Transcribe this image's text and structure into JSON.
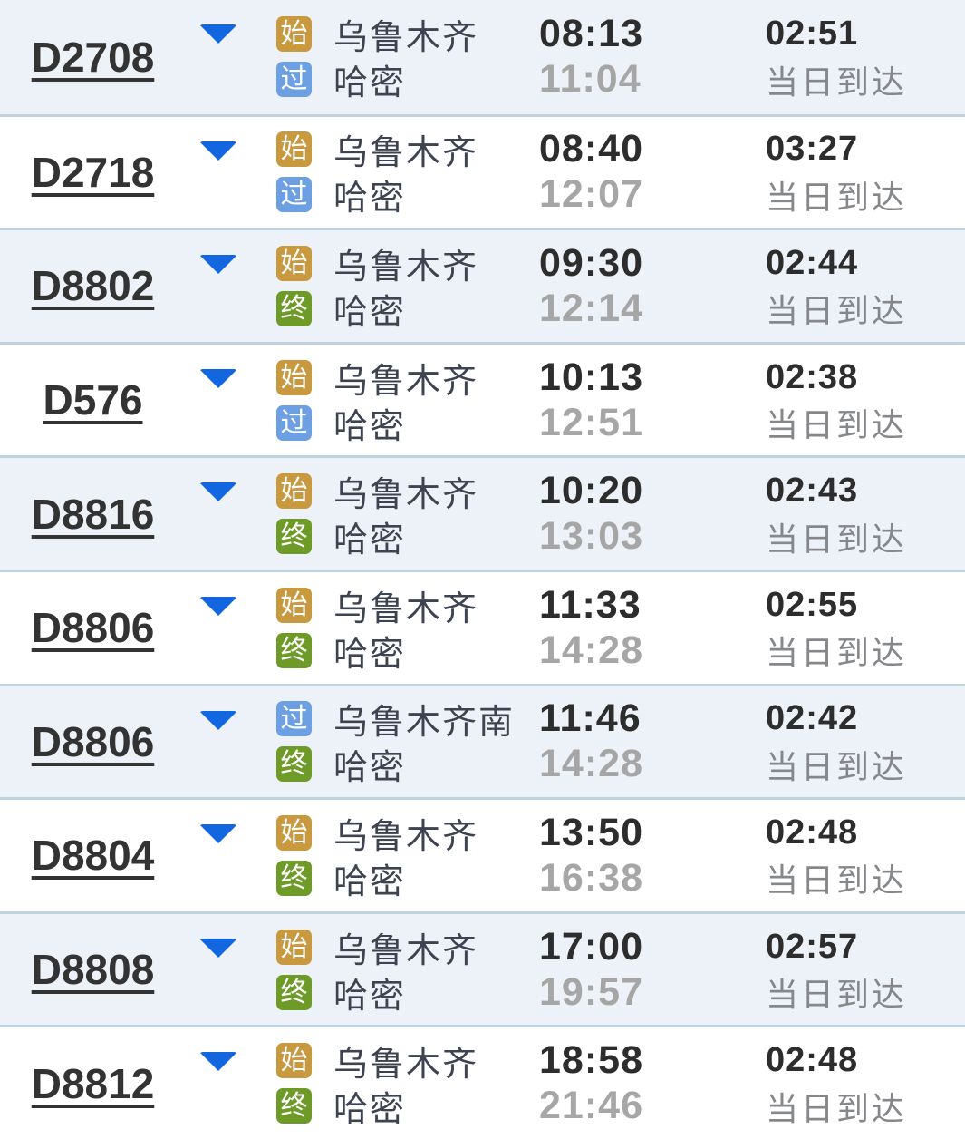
{
  "badge_types": {
    "start": {
      "label": "始",
      "color": "#c8993e"
    },
    "pass": {
      "label": "过",
      "color": "#6ca0e2"
    },
    "end": {
      "label": "终",
      "color": "#6e9a28"
    }
  },
  "colors": {
    "row_alt_bg": "#edf1f8",
    "row_bg": "#ffffff",
    "separator": "#bfd2dd",
    "arrow": "#1267e0",
    "train_number": "#333333",
    "station_name": "#3d4350",
    "time_primary": "#2d2d2d",
    "time_secondary": "#a6a6a6",
    "note": "#85878a"
  },
  "rows": [
    {
      "train": "D2708",
      "origin_type": "start",
      "origin": "乌鲁木齐",
      "depart": "08:13",
      "dest_type": "pass",
      "dest": "哈密",
      "arrive": "11:04",
      "duration": "02:51",
      "arrival_note": "当日到达"
    },
    {
      "train": "D2718",
      "origin_type": "start",
      "origin": "乌鲁木齐",
      "depart": "08:40",
      "dest_type": "pass",
      "dest": "哈密",
      "arrive": "12:07",
      "duration": "03:27",
      "arrival_note": "当日到达"
    },
    {
      "train": "D8802",
      "origin_type": "start",
      "origin": "乌鲁木齐",
      "depart": "09:30",
      "dest_type": "end",
      "dest": "哈密",
      "arrive": "12:14",
      "duration": "02:44",
      "arrival_note": "当日到达"
    },
    {
      "train": "D576",
      "origin_type": "start",
      "origin": "乌鲁木齐",
      "depart": "10:13",
      "dest_type": "pass",
      "dest": "哈密",
      "arrive": "12:51",
      "duration": "02:38",
      "arrival_note": "当日到达"
    },
    {
      "train": "D8816",
      "origin_type": "start",
      "origin": "乌鲁木齐",
      "depart": "10:20",
      "dest_type": "end",
      "dest": "哈密",
      "arrive": "13:03",
      "duration": "02:43",
      "arrival_note": "当日到达"
    },
    {
      "train": "D8806",
      "origin_type": "start",
      "origin": "乌鲁木齐",
      "depart": "11:33",
      "dest_type": "end",
      "dest": "哈密",
      "arrive": "14:28",
      "duration": "02:55",
      "arrival_note": "当日到达"
    },
    {
      "train": "D8806",
      "origin_type": "pass",
      "origin": "乌鲁木齐南",
      "depart": "11:46",
      "dest_type": "end",
      "dest": "哈密",
      "arrive": "14:28",
      "duration": "02:42",
      "arrival_note": "当日到达"
    },
    {
      "train": "D8804",
      "origin_type": "start",
      "origin": "乌鲁木齐",
      "depart": "13:50",
      "dest_type": "end",
      "dest": "哈密",
      "arrive": "16:38",
      "duration": "02:48",
      "arrival_note": "当日到达"
    },
    {
      "train": "D8808",
      "origin_type": "start",
      "origin": "乌鲁木齐",
      "depart": "17:00",
      "dest_type": "end",
      "dest": "哈密",
      "arrive": "19:57",
      "duration": "02:57",
      "arrival_note": "当日到达"
    },
    {
      "train": "D8812",
      "origin_type": "start",
      "origin": "乌鲁木齐",
      "depart": "18:58",
      "dest_type": "end",
      "dest": "哈密",
      "arrive": "21:46",
      "duration": "02:48",
      "arrival_note": "当日到达"
    }
  ]
}
